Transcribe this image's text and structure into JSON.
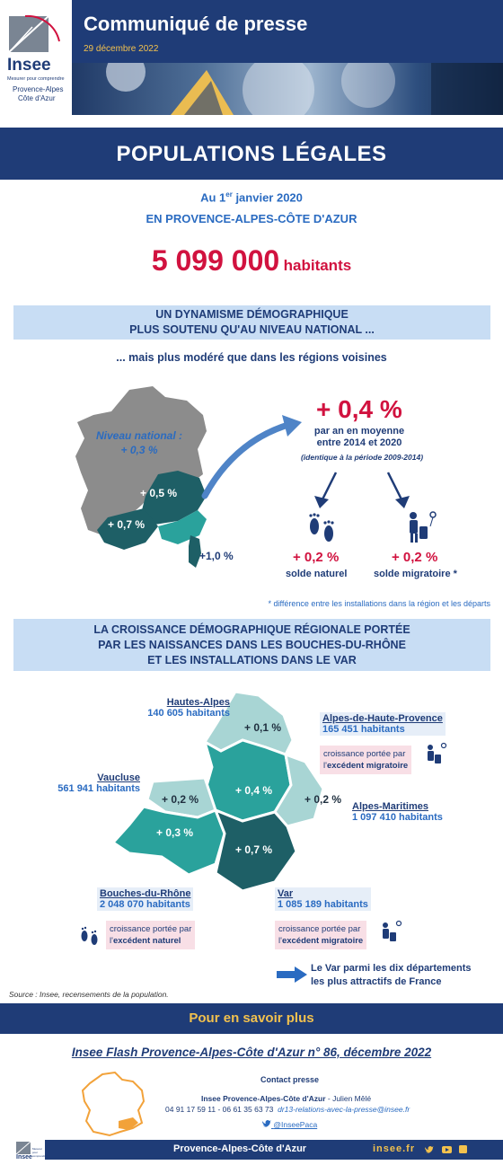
{
  "header": {
    "logo_name": "Insee",
    "logo_tagline": "Mesurer pour comprendre",
    "logo_region_1": "Provence-Alpes",
    "logo_region_2": "Côte d'Azur",
    "title": "Communiqué de presse",
    "date": "29 décembre 2022"
  },
  "main_title": "POPULATIONS LÉGALES",
  "intro": {
    "date_prefix": "Au 1",
    "date_sup": "er",
    "date_suffix": " janvier 2020",
    "region": "EN PROVENCE-ALPES-CÔTE D'AZUR",
    "population": "5 099 000",
    "population_unit": "habitants"
  },
  "section1": {
    "box_line1": "UN DYNAMISME DÉMOGRAPHIQUE",
    "box_line2": "PLUS SOUTENU QU'AU NIVEAU NATIONAL ...",
    "subtitle": "... mais plus modéré que dans les régions voisines",
    "national_label": "Niveau national :",
    "national_rate": "+ 0,3 %",
    "map_rate_1": "+ 0,5 %",
    "map_rate_2": "+ 0,7 %",
    "map_rate_3": "+1,0 %",
    "big_rate": "+ 0,4 %",
    "rate_desc_1": "par an en moyenne",
    "rate_desc_2": "entre 2014 et 2020",
    "rate_note": "(identique à la période 2009-2014)",
    "natural_rate": "+ 0,2 %",
    "natural_label": "solde naturel",
    "migration_rate": "+ 0,2 %",
    "migration_label": "solde migratoire *",
    "footnote": "* différence entre les installations dans la région et les départs"
  },
  "section2": {
    "box_line1": "LA CROISSANCE DÉMOGRAPHIQUE RÉGIONALE PORTÉE",
    "box_line2": "PAR LES NAISSANCES DANS LES BOUCHES-DU-RHÔNE",
    "box_line3": "ET LES INSTALLATIONS DANS LE VAR",
    "departments": [
      {
        "name": "Hautes-Alpes",
        "population": "140 605 habitants",
        "rate": "+ 0,1 %"
      },
      {
        "name": "Alpes-de-Haute-Provence",
        "population": "165 451 habitants",
        "rate": "+ 0,4 %"
      },
      {
        "name": "Vaucluse",
        "population": "561 941 habitants",
        "rate": "+ 0,2 %"
      },
      {
        "name": "Alpes-Maritimes",
        "population": "1 097 410 habitants",
        "rate": "+ 0,2 %"
      },
      {
        "name": "Bouches-du-Rhône",
        "population": "2 048 070 habitants",
        "rate": "+ 0,3 %"
      },
      {
        "name": "Var",
        "population": "1 085 189 habitants",
        "rate": "+ 0,7 %"
      }
    ],
    "note_prefix": "croissance portée par",
    "note_l": "l'",
    "note_migration": "excédent migratoire",
    "note_natural": "excédent naturel",
    "var_note_1": "Le Var parmi les dix départements",
    "var_note_2": "les plus attractifs de France",
    "source": "Source : Insee, recensements de la population."
  },
  "more": {
    "title": "Pour en savoir plus",
    "flash": "Insee Flash Provence-Alpes-Côte d'Azur n° 86, décembre 2022",
    "contact_head": "Contact presse",
    "contact_org": "Insee Provence-Alpes-Côte d'Azur",
    "contact_person": " - Julien Mêlé",
    "contact_phone": "04 91 17 59 11 - 06 61 35 63 73",
    "contact_mail": "dr13-relations-avec-la-presse@insee.fr",
    "contact_twitter": "@InseePaca"
  },
  "footer": {
    "region": "Provence-Alpes-Côte d'Azur",
    "site": "insee.fr",
    "logo": "Insee",
    "logo_tagline": "Mesurer pour comprendre"
  },
  "colors": {
    "navy": "#1f3c77",
    "red": "#d1123f",
    "light_blue_box": "#c8ddf4",
    "teal_dark": "#1e5f66",
    "teal_mid": "#2aa29c",
    "teal_light": "#a8d5d4",
    "gold": "#f2c14e"
  }
}
